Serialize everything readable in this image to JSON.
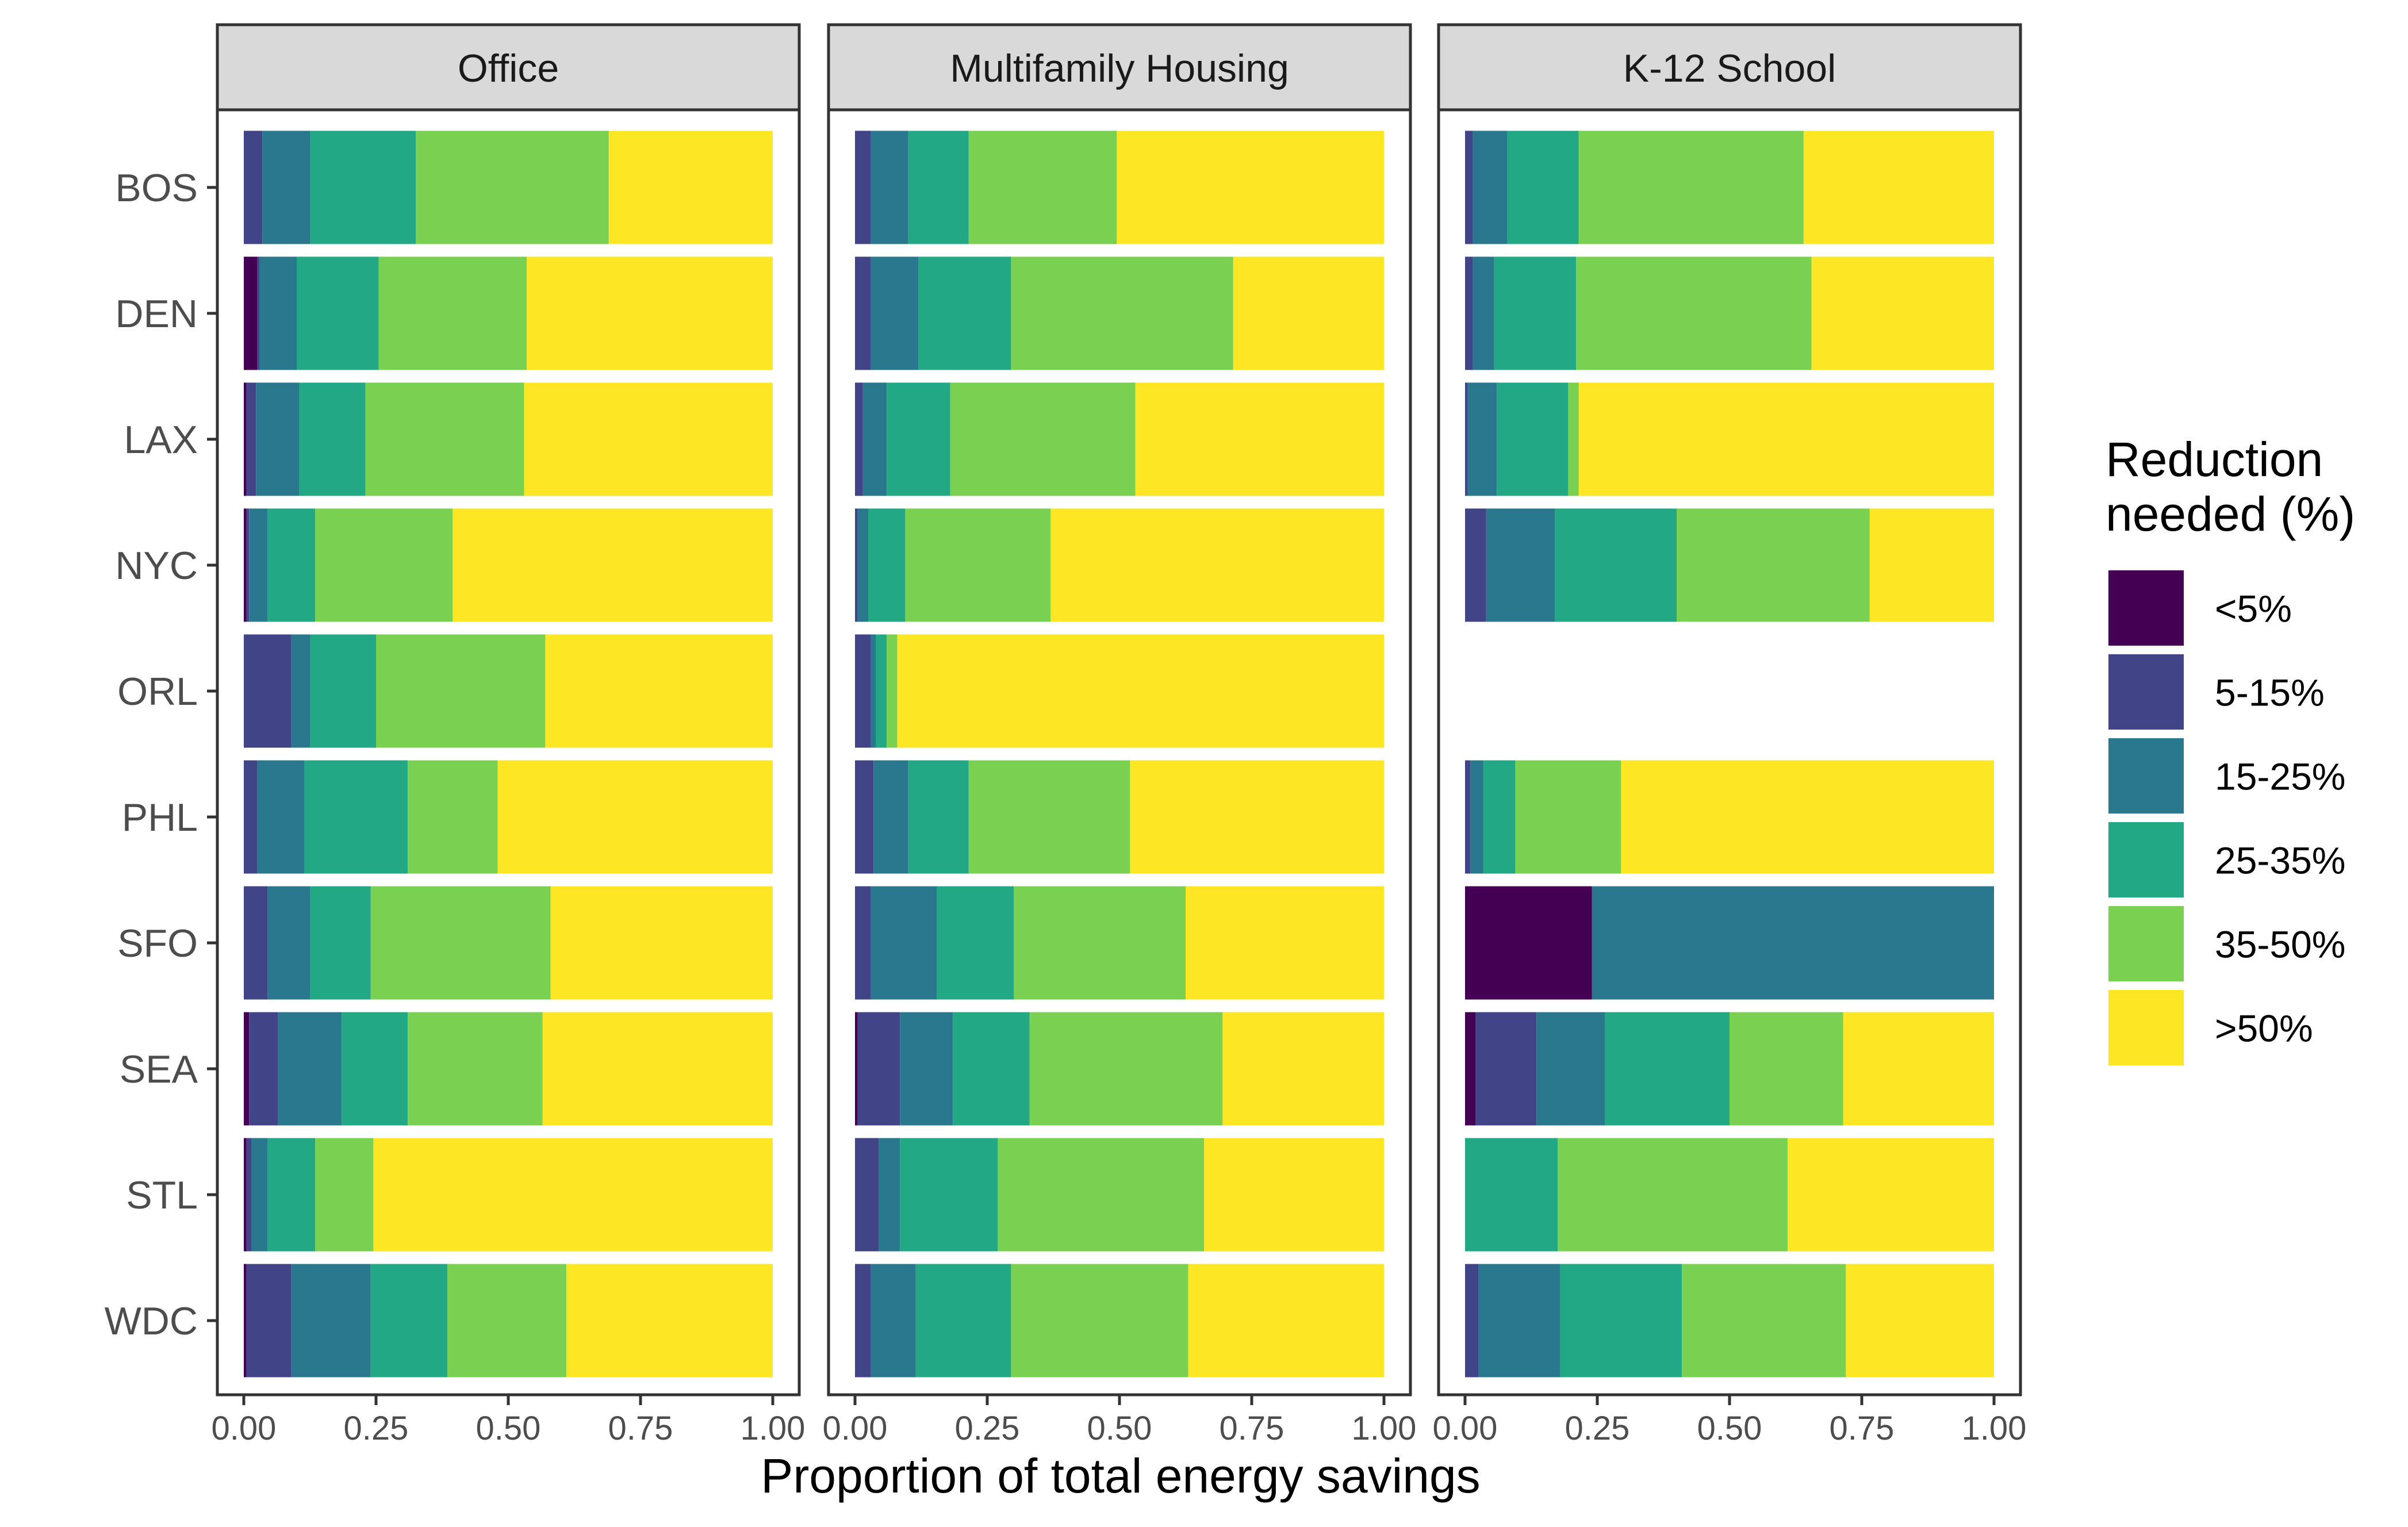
{
  "chart_data": {
    "type": "bar",
    "orientation": "horizontal",
    "stacked": true,
    "xlabel": "Proportion of total energy savings",
    "xlim": [
      0,
      1
    ],
    "x_ticks": [
      "0.00",
      "0.25",
      "0.50",
      "0.75",
      "1.00"
    ],
    "categories": [
      "BOS",
      "DEN",
      "LAX",
      "NYC",
      "ORL",
      "PHL",
      "SFO",
      "SEA",
      "STL",
      "WDC"
    ],
    "legend": {
      "title_lines": [
        "Reduction",
        "needed (%)"
      ],
      "position": "right",
      "items": [
        {
          "label": "<5%",
          "color": "#440154"
        },
        {
          "label": "5-15%",
          "color": "#414487"
        },
        {
          "label": "15-25%",
          "color": "#2a788e"
        },
        {
          "label": "25-35%",
          "color": "#22a884"
        },
        {
          "label": "35-50%",
          "color": "#7ad151"
        },
        {
          "label": ">50%",
          "color": "#fde725"
        }
      ]
    },
    "panels": [
      {
        "title": "Office",
        "bars": [
          {
            "category": "BOS",
            "values": [
              0.0,
              0.035,
              0.09,
              0.2,
              0.365,
              0.31
            ]
          },
          {
            "category": "DEN",
            "values": [
              0.025,
              0.005,
              0.07,
              0.155,
              0.28,
              0.465
            ]
          },
          {
            "category": "LAX",
            "values": [
              0.005,
              0.018,
              0.082,
              0.125,
              0.3,
              0.47
            ]
          },
          {
            "category": "NYC",
            "values": [
              0.005,
              0.005,
              0.035,
              0.09,
              0.26,
              0.605
            ]
          },
          {
            "category": "ORL",
            "values": [
              0.0,
              0.09,
              0.035,
              0.125,
              0.32,
              0.43
            ]
          },
          {
            "category": "PHL",
            "values": [
              0.0,
              0.025,
              0.09,
              0.195,
              0.17,
              0.52
            ]
          },
          {
            "category": "SFO",
            "values": [
              0.0,
              0.045,
              0.08,
              0.115,
              0.34,
              0.42
            ]
          },
          {
            "category": "SEA",
            "values": [
              0.01,
              0.055,
              0.12,
              0.125,
              0.255,
              0.435
            ]
          },
          {
            "category": "STL",
            "values": [
              0.005,
              0.01,
              0.03,
              0.09,
              0.11,
              0.755
            ]
          },
          {
            "category": "WDC",
            "values": [
              0.005,
              0.085,
              0.15,
              0.145,
              0.225,
              0.39
            ]
          }
        ]
      },
      {
        "title": "Multifamily Housing",
        "bars": [
          {
            "category": "BOS",
            "values": [
              0.0,
              0.03,
              0.07,
              0.115,
              0.28,
              0.505
            ]
          },
          {
            "category": "DEN",
            "values": [
              0.0,
              0.03,
              0.09,
              0.175,
              0.42,
              0.285
            ]
          },
          {
            "category": "LAX",
            "values": [
              0.0,
              0.015,
              0.045,
              0.12,
              0.35,
              0.47
            ]
          },
          {
            "category": "NYC",
            "values": [
              0.0,
              0.005,
              0.02,
              0.07,
              0.275,
              0.63
            ]
          },
          {
            "category": "ORL",
            "values": [
              0.0,
              0.03,
              0.01,
              0.02,
              0.02,
              0.92
            ]
          },
          {
            "category": "PHL",
            "values": [
              0.0,
              0.035,
              0.065,
              0.115,
              0.305,
              0.48
            ]
          },
          {
            "category": "SFO",
            "values": [
              0.0,
              0.03,
              0.125,
              0.145,
              0.325,
              0.375
            ]
          },
          {
            "category": "SEA",
            "values": [
              0.005,
              0.08,
              0.1,
              0.145,
              0.365,
              0.305
            ]
          },
          {
            "category": "STL",
            "values": [
              0.0,
              0.045,
              0.04,
              0.185,
              0.39,
              0.34
            ]
          },
          {
            "category": "WDC",
            "values": [
              0.0,
              0.03,
              0.085,
              0.18,
              0.335,
              0.37
            ]
          }
        ]
      },
      {
        "title": "K-12 School",
        "bars": [
          {
            "category": "BOS",
            "values": [
              0.0,
              0.015,
              0.065,
              0.135,
              0.425,
              0.36
            ]
          },
          {
            "category": "DEN",
            "values": [
              0.0,
              0.015,
              0.04,
              0.155,
              0.445,
              0.345
            ]
          },
          {
            "category": "LAX",
            "values": [
              0.0,
              0.005,
              0.055,
              0.135,
              0.02,
              0.785
            ]
          },
          {
            "category": "NYC",
            "values": [
              0.0,
              0.04,
              0.13,
              0.23,
              0.365,
              0.235
            ]
          },
          {
            "category": "ORL",
            "values": [
              0,
              0,
              0,
              0,
              0,
              0
            ]
          },
          {
            "category": "PHL",
            "values": [
              0.0,
              0.01,
              0.025,
              0.06,
              0.2,
              0.705
            ]
          },
          {
            "category": "SFO",
            "values": [
              0.24,
              0.0,
              0.76,
              0.0,
              0.0,
              0.0
            ]
          },
          {
            "category": "SEA",
            "values": [
              0.02,
              0.115,
              0.13,
              0.235,
              0.215,
              0.285
            ]
          },
          {
            "category": "STL",
            "values": [
              0.0,
              0.0,
              0.0,
              0.175,
              0.435,
              0.39
            ]
          },
          {
            "category": "WDC",
            "values": [
              0.0,
              0.025,
              0.155,
              0.23,
              0.31,
              0.28
            ]
          }
        ]
      }
    ]
  }
}
